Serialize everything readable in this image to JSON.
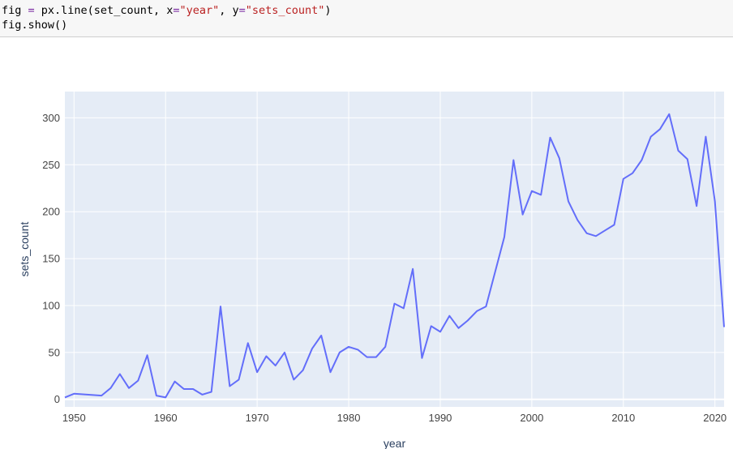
{
  "code_cell": {
    "line1": {
      "prefix": "fig ",
      "eq": "=",
      "mid1": " px.line(set_count, x",
      "eq2": "=",
      "x_str": "\"year\"",
      "mid2": ", y",
      "eq3": "=",
      "y_str": "\"sets_count\"",
      "suffix": ")"
    },
    "line2": "fig.show()"
  },
  "colors": {
    "plot_bg": "#e5ecf6",
    "grid": "#ffffff",
    "line": "#636efa",
    "code_bg": "#f7f7f7",
    "string": "#ba2121",
    "operator": "#7928a1"
  },
  "chart_data": {
    "type": "line",
    "xlabel": "year",
    "ylabel": "sets_count",
    "xlim": [
      1949,
      2021
    ],
    "ylim": [
      -8,
      328
    ],
    "grid": true,
    "x_ticks": [
      1950,
      1960,
      1970,
      1980,
      1990,
      2000,
      2010,
      2020
    ],
    "y_ticks": [
      0,
      50,
      100,
      150,
      200,
      250,
      300
    ],
    "series": [
      {
        "x": [
          1949,
          1950,
          1953,
          1954,
          1955,
          1956,
          1957,
          1958,
          1959,
          1960,
          1961,
          1962,
          1963,
          1964,
          1965,
          1966,
          1967,
          1968,
          1969,
          1970,
          1971,
          1972,
          1973,
          1974,
          1975,
          1976,
          1977,
          1978,
          1979,
          1980,
          1981,
          1982,
          1983,
          1984,
          1985,
          1986,
          1987,
          1988,
          1989,
          1990,
          1991,
          1992,
          1993,
          1994,
          1995,
          1996,
          1997,
          1998,
          1999,
          2000,
          2001,
          2002,
          2003,
          2004,
          2005,
          2006,
          2007,
          2008,
          2009,
          2010,
          2011,
          2012,
          2013,
          2014,
          2015,
          2016,
          2017,
          2018,
          2019,
          2020,
          2021
        ],
        "y": [
          2,
          6,
          4,
          12,
          27,
          12,
          20,
          47,
          4,
          2,
          19,
          11,
          11,
          5,
          8,
          99,
          14,
          21,
          60,
          29,
          46,
          36,
          50,
          21,
          31,
          54,
          68,
          29,
          50,
          56,
          53,
          45,
          45,
          56,
          102,
          97,
          139,
          44,
          78,
          72,
          89,
          76,
          84,
          94,
          99,
          136,
          173,
          255,
          197,
          222,
          218,
          279,
          257,
          211,
          191,
          177,
          174,
          180,
          186,
          235,
          241,
          255,
          280,
          288,
          304,
          265,
          256,
          206,
          280,
          211,
          77
        ]
      }
    ]
  }
}
